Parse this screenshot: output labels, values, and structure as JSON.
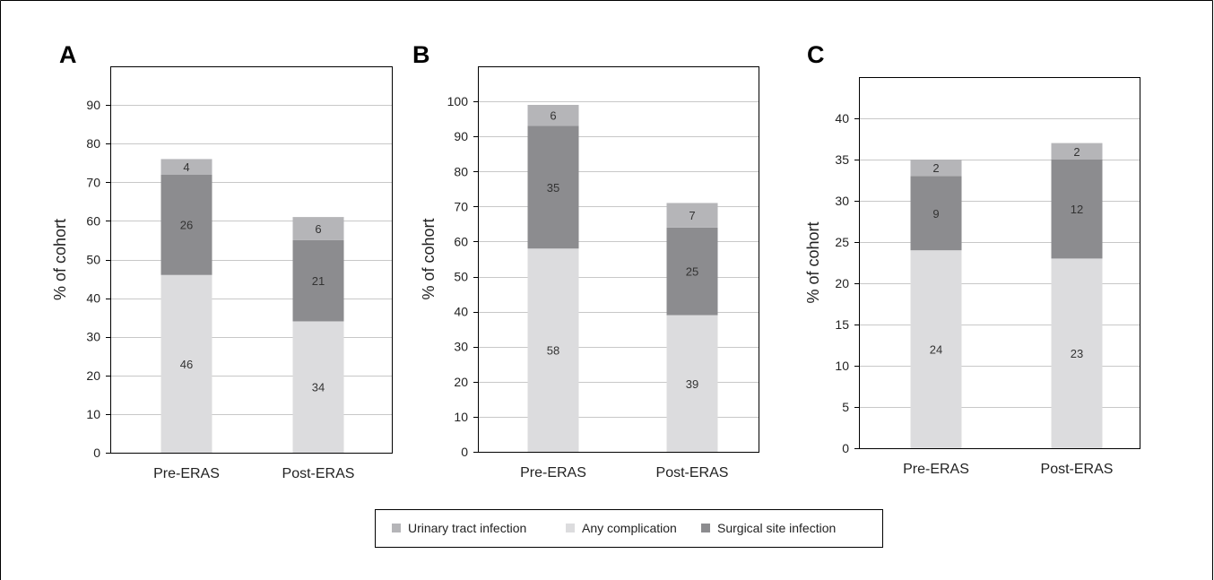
{
  "colors": {
    "urinary_tract_infection": "#b5b5b8",
    "any_complication": "#dcdcde",
    "surgical_site_infection": "#8c8c8f",
    "gridline": "#c8c8c8",
    "frame": "#000000"
  },
  "legend": {
    "position": "bottom-center",
    "items": [
      {
        "key": "urinary_tract_infection",
        "label": "Urinary tract infection"
      },
      {
        "key": "any_complication",
        "label": "Any complication"
      },
      {
        "key": "surgical_site_infection",
        "label": "Surgical site infection"
      }
    ]
  },
  "chart_data": [
    {
      "type": "bar",
      "stacked": true,
      "panel": "A",
      "ylabel": "% of cohort",
      "ylim": [
        0,
        100
      ],
      "yticks": [
        0,
        10,
        20,
        30,
        40,
        50,
        60,
        70,
        80,
        90
      ],
      "grid": true,
      "categories": [
        "Pre-ERAS",
        "Post-ERAS"
      ],
      "series": [
        {
          "key": "any_complication",
          "name": "Any complication",
          "values": [
            46,
            34
          ]
        },
        {
          "key": "surgical_site_infection",
          "name": "Surgical site infection",
          "values": [
            26,
            21
          ]
        },
        {
          "key": "urinary_tract_infection",
          "name": "Urinary tract infection",
          "values": [
            4,
            6
          ]
        }
      ]
    },
    {
      "type": "bar",
      "stacked": true,
      "panel": "B",
      "ylabel": "% of cohort",
      "ylim": [
        0,
        110
      ],
      "yticks": [
        0,
        10,
        20,
        30,
        40,
        50,
        60,
        70,
        80,
        90,
        100
      ],
      "grid": true,
      "categories": [
        "Pre-ERAS",
        "Post-ERAS"
      ],
      "series": [
        {
          "key": "any_complication",
          "name": "Any complication",
          "values": [
            58,
            39
          ]
        },
        {
          "key": "surgical_site_infection",
          "name": "Surgical site infection",
          "values": [
            35,
            25
          ]
        },
        {
          "key": "urinary_tract_infection",
          "name": "Urinary tract infection",
          "values": [
            6,
            7
          ]
        }
      ]
    },
    {
      "type": "bar",
      "stacked": true,
      "panel": "C",
      "ylabel": "% of cohort",
      "ylim": [
        0,
        45
      ],
      "yticks": [
        0,
        5,
        10,
        15,
        20,
        25,
        30,
        35,
        40
      ],
      "grid": true,
      "categories": [
        "Pre-ERAS",
        "Post-ERAS"
      ],
      "series": [
        {
          "key": "any_complication",
          "name": "Any complication",
          "values": [
            24,
            23
          ]
        },
        {
          "key": "surgical_site_infection",
          "name": "Surgical site infection",
          "values": [
            9,
            12
          ]
        },
        {
          "key": "urinary_tract_infection",
          "name": "Urinary tract infection",
          "values": [
            2,
            2
          ]
        }
      ]
    }
  ]
}
